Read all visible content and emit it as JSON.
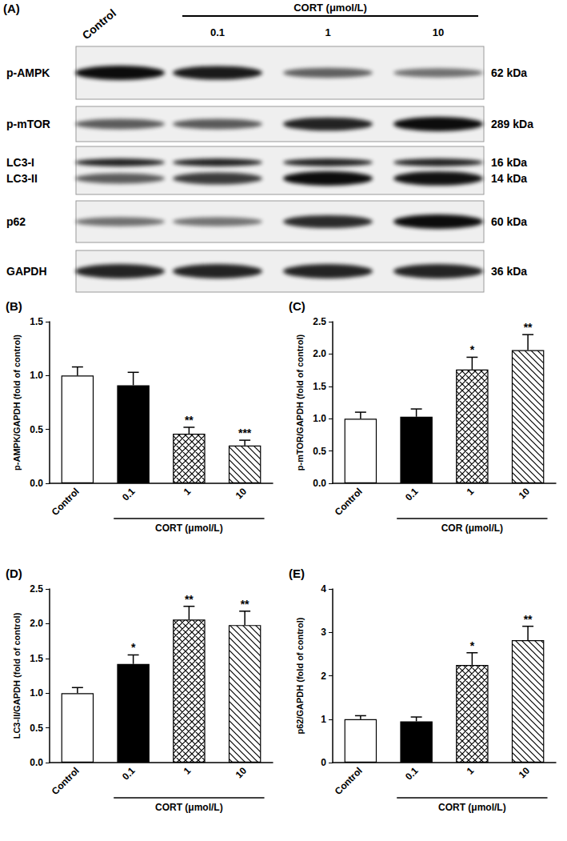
{
  "panel_a": {
    "label": "(A)",
    "control_label": "Control",
    "treatment_label": "CORT (μmol/L)",
    "doses": [
      "0.1",
      "1",
      "10"
    ],
    "blots": [
      {
        "bands": [
          {
            "name": "p-AMPK",
            "size": "62 kDa"
          }
        ]
      },
      {
        "bands": [
          {
            "name": "p-mTOR",
            "size": "289 kDa"
          }
        ]
      },
      {
        "bands": [
          {
            "name": "LC3-I",
            "size": "16 kDa"
          },
          {
            "name": "LC3-II",
            "size": "14 kDa"
          }
        ]
      },
      {
        "bands": [
          {
            "name": "p62",
            "size": "60 kDa"
          }
        ]
      },
      {
        "bands": [
          {
            "name": "GAPDH",
            "size": "36 kDa"
          }
        ]
      }
    ]
  },
  "chart_data": [
    {
      "type": "bar",
      "title": "(B)",
      "ylabel": "p-AMPK/GAPDH (fold of control)",
      "group_label": "CORT (μmol/L)",
      "categories": [
        "Control",
        "0.1",
        "1",
        "10"
      ],
      "values": [
        1.0,
        0.91,
        0.46,
        0.35
      ],
      "errors": [
        0.08,
        0.12,
        0.06,
        0.05
      ],
      "significance": [
        null,
        null,
        "**",
        "***"
      ],
      "colors": [
        "#ffffff",
        "#000000",
        "#ffffff",
        "#ffffff"
      ],
      "ylim": [
        0,
        1.5
      ],
      "yticks": [
        {
          "value": 0,
          "label": "0.0"
        },
        0.5,
        {
          "value": 1,
          "label": "1.0"
        },
        1.5
      ]
    },
    {
      "type": "bar",
      "title": "(C)",
      "ylabel": "p-mTOR/GAPDH (fold of control)",
      "group_label": "COR (μmol/L)",
      "categories": [
        "Control",
        "0.1",
        "1",
        "10"
      ],
      "values": [
        1.0,
        1.03,
        1.76,
        2.06
      ],
      "errors": [
        0.1,
        0.12,
        0.19,
        0.24
      ],
      "significance": [
        null,
        null,
        "*",
        "**"
      ],
      "colors": [
        "#ffffff",
        "#000000",
        "#ffffff",
        "#ffffff"
      ],
      "ylim": [
        0,
        2.5
      ],
      "yticks": [
        {
          "value": 0,
          "label": "0.0"
        },
        0.5,
        {
          "value": 1,
          "label": "1.0"
        },
        1.5,
        {
          "value": 2,
          "label": "2.0"
        },
        2.5
      ]
    },
    {
      "type": "bar",
      "title": "(D)",
      "ylabel": "LC3-II/GAPDH (fold of control)",
      "group_label": "CORT (μmol/L)",
      "categories": [
        "Control",
        "0.1",
        "1",
        "10"
      ],
      "values": [
        1.0,
        1.42,
        2.06,
        1.98
      ],
      "errors": [
        0.08,
        0.13,
        0.19,
        0.2
      ],
      "significance": [
        null,
        "*",
        "**",
        "**"
      ],
      "colors": [
        "#ffffff",
        "#000000",
        "#ffffff",
        "#ffffff"
      ],
      "ylim": [
        0,
        2.5
      ],
      "yticks": [
        {
          "value": 0,
          "label": "0.0"
        },
        0.5,
        {
          "value": 1,
          "label": "1.0"
        },
        1.5,
        {
          "value": 2,
          "label": "2.0"
        },
        2.5
      ]
    },
    {
      "type": "bar",
      "title": "(E)",
      "ylabel": "p62/GAPDH (fold of control)",
      "group_label": "CORT (μmol/L)",
      "categories": [
        "Control",
        "0.1",
        "1",
        "10"
      ],
      "values": [
        1.0,
        0.95,
        2.25,
        2.82
      ],
      "errors": [
        0.08,
        0.1,
        0.28,
        0.32
      ],
      "significance": [
        null,
        null,
        "*",
        "**"
      ],
      "colors": [
        "#ffffff",
        "#000000",
        "#ffffff",
        "#ffffff"
      ],
      "ylim": [
        0,
        4
      ],
      "yticks": [
        0,
        1,
        2,
        3,
        4
      ]
    }
  ]
}
